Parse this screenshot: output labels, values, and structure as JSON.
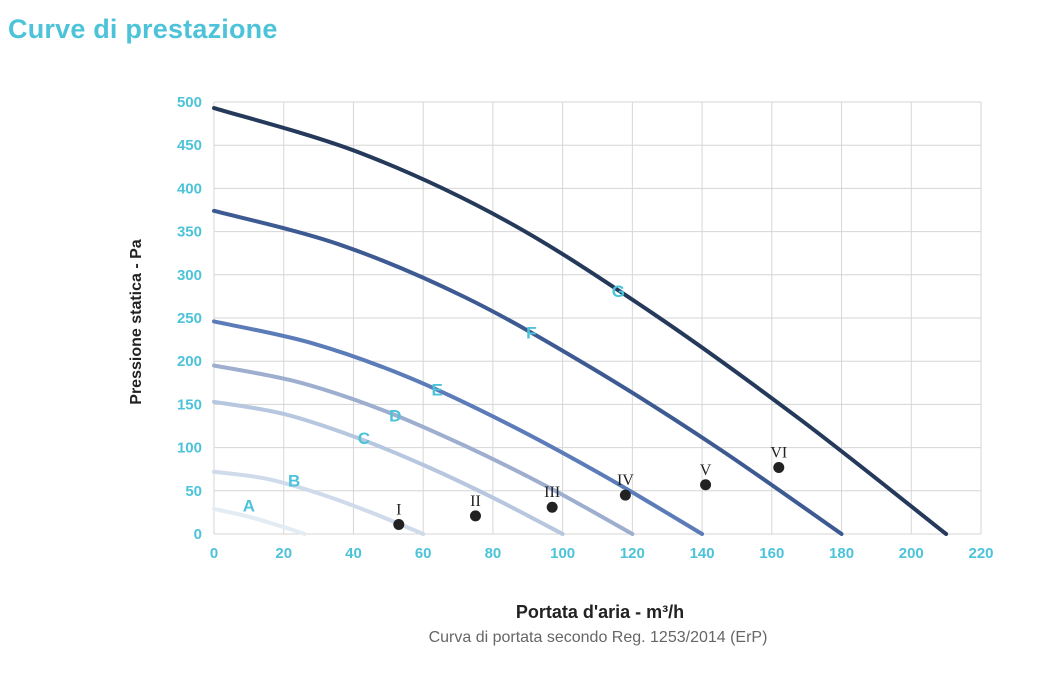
{
  "title": "Curve di prestazione",
  "caption": "Curva di portata secondo Reg. 1253/2014 (ErP)",
  "colors": {
    "title": "#4cc3d9",
    "tick": "#4cc3d9",
    "curve_label": "#4cc3d9",
    "grid": "#d6d6d6",
    "point": "#222222"
  },
  "chart_data": {
    "type": "line",
    "xlabel": "Portata d'aria - m³/h",
    "ylabel": "Pressione statica - Pa",
    "xlim": [
      0,
      220
    ],
    "ylim": [
      0,
      500
    ],
    "xticks": [
      0,
      20,
      40,
      60,
      80,
      100,
      120,
      140,
      160,
      180,
      200,
      220
    ],
    "yticks": [
      0,
      50,
      100,
      150,
      200,
      250,
      300,
      350,
      400,
      450,
      500
    ],
    "grid": true,
    "series": [
      {
        "name": "A",
        "color": "#e3ebf3",
        "x": [
          0,
          10,
          20,
          26
        ],
        "y": [
          29,
          20,
          8,
          0
        ],
        "label_at": [
          10,
          33
        ]
      },
      {
        "name": "B",
        "color": "#cfdaea",
        "x": [
          0,
          15,
          30,
          45,
          60
        ],
        "y": [
          72,
          64,
          47,
          25,
          0
        ],
        "label_at": [
          23,
          62
        ]
      },
      {
        "name": "C",
        "color": "#b6c7df",
        "x": [
          0,
          20,
          40,
          60,
          80,
          100
        ],
        "y": [
          153,
          139,
          113,
          80,
          42,
          0
        ],
        "label_at": [
          43,
          111
        ]
      },
      {
        "name": "D",
        "color": "#9daecf",
        "x": [
          0,
          24,
          48,
          72,
          96,
          120
        ],
        "y": [
          195,
          176,
          144,
          102,
          54,
          0
        ],
        "label_at": [
          52,
          137
        ]
      },
      {
        "name": "E",
        "color": "#5b7cb8",
        "x": [
          0,
          28,
          56,
          84,
          112,
          140
        ],
        "y": [
          246,
          221,
          181,
          128,
          67,
          0
        ],
        "label_at": [
          64,
          167
        ]
      },
      {
        "name": "F",
        "color": "#3d5b92",
        "x": [
          0,
          36,
          72,
          108,
          144,
          180
        ],
        "y": [
          374,
          335,
          274,
          193,
          101,
          0
        ],
        "label_at": [
          91,
          233
        ]
      },
      {
        "name": "G",
        "color": "#253a5a",
        "x": [
          0,
          42,
          84,
          126,
          168,
          210
        ],
        "y": [
          493,
          441,
          362,
          255,
          133,
          0
        ],
        "label_at": [
          116,
          281
        ]
      }
    ],
    "points": [
      {
        "label": "I",
        "x": 53,
        "y": 11
      },
      {
        "label": "II",
        "x": 75,
        "y": 21
      },
      {
        "label": "III",
        "x": 97,
        "y": 31
      },
      {
        "label": "IV",
        "x": 118,
        "y": 45
      },
      {
        "label": "V",
        "x": 141,
        "y": 57
      },
      {
        "label": "VI",
        "x": 162,
        "y": 77
      }
    ]
  }
}
